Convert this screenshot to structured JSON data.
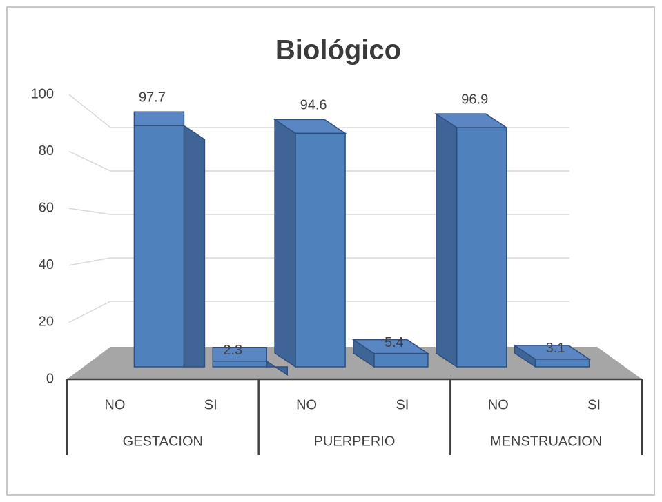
{
  "chart_data": {
    "type": "bar",
    "title": "Biológico",
    "categories": [
      "NO",
      "SI",
      "NO",
      "SI",
      "NO",
      "SI"
    ],
    "groups": [
      "GESTACION",
      "PUERPERIO",
      "MENSTRUACION"
    ],
    "values": [
      97.7,
      2.3,
      94.6,
      5.4,
      96.9,
      3.1
    ],
    "color": "#4f81bd",
    "ylim": [
      0,
      100
    ],
    "yticks": [
      0,
      20,
      40,
      60,
      80,
      100
    ],
    "grid": true
  }
}
